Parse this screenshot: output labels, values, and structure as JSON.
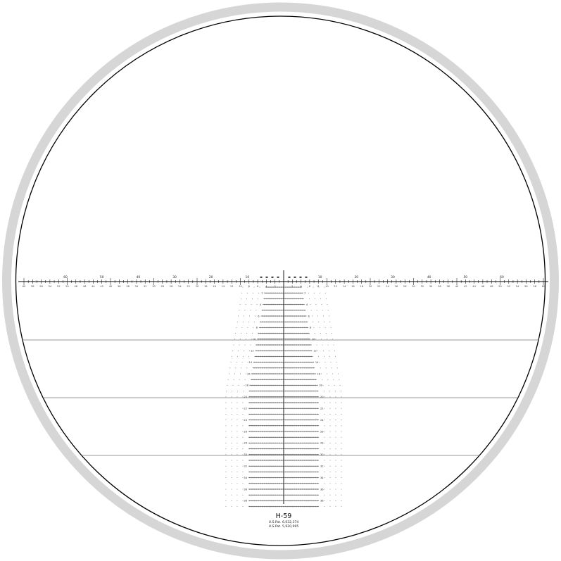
{
  "reticle": {
    "name": "H-59",
    "patents": [
      "U.S.Pat. 6,032,374",
      "U.S.Pat. 5,920,995"
    ],
    "colors": {
      "outer_ring": "#d6d6d6",
      "line": "#000000",
      "ink": "#333333"
    },
    "horizontal_tick_labels": [
      2,
      4,
      6,
      8,
      10,
      12,
      14,
      16,
      18,
      20,
      22,
      24,
      26,
      28,
      30,
      32,
      34,
      36,
      38,
      40,
      42,
      44,
      46,
      48,
      50,
      52,
      54,
      56,
      58,
      60
    ],
    "major_labels": [
      "10",
      "20",
      "30",
      "40",
      "50",
      "60"
    ],
    "row_labels": [
      "2",
      "4",
      "6",
      "8",
      "10",
      "12",
      "14",
      "16",
      "18",
      "20",
      "22",
      "24",
      "26",
      "28",
      "30",
      "32",
      "34",
      "36",
      "38"
    ],
    "range_lines": [
      "10",
      "20",
      "30"
    ]
  }
}
